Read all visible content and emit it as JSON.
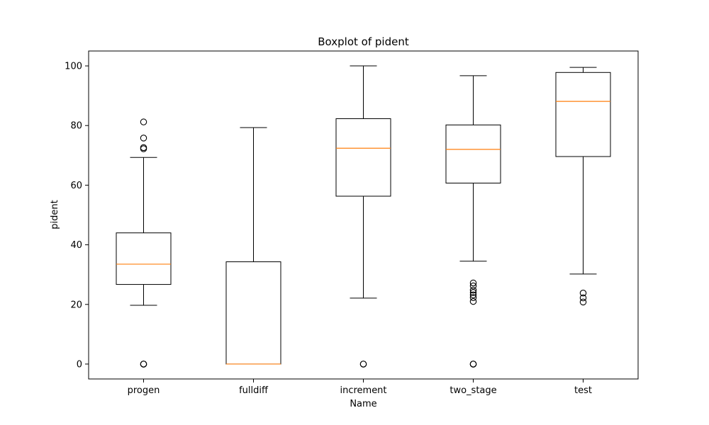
{
  "chart_data": {
    "type": "boxplot",
    "title": "Boxplot of pident",
    "xlabel": "Name",
    "ylabel": "pident",
    "ylim": [
      -5,
      105
    ],
    "yticks": [
      0,
      20,
      40,
      60,
      80,
      100
    ],
    "grid": false,
    "colors": {
      "box": "#000000",
      "median": "#ff7f0e",
      "background": "#ffffff"
    },
    "categories": [
      "progen",
      "fulldiff",
      "increment",
      "two_stage",
      "test"
    ],
    "boxes": [
      {
        "name": "progen",
        "whisker_low": 19.7,
        "q1": 26.7,
        "median": 33.5,
        "q3": 44.0,
        "whisker_high": 69.3,
        "outliers": [
          0,
          0,
          0,
          72.2,
          72.6,
          75.8,
          81.2
        ]
      },
      {
        "name": "fulldiff",
        "whisker_low": 0,
        "q1": 0,
        "median": 0,
        "q3": 34.3,
        "whisker_high": 79.3,
        "outliers": []
      },
      {
        "name": "increment",
        "whisker_low": 22.1,
        "q1": 56.3,
        "median": 72.4,
        "q3": 82.3,
        "whisker_high": 100,
        "outliers": [
          0,
          0
        ]
      },
      {
        "name": "two_stage",
        "whisker_low": 34.5,
        "q1": 60.7,
        "median": 72.0,
        "q3": 80.2,
        "whisker_high": 96.7,
        "outliers": [
          0,
          0,
          0,
          21.0,
          22.3,
          23.2,
          24.0,
          24.8,
          26.2,
          27.2
        ]
      },
      {
        "name": "test",
        "whisker_low": 30.2,
        "q1": 69.6,
        "median": 88.1,
        "q3": 97.8,
        "whisker_high": 99.5,
        "outliers": [
          20.8,
          22.2,
          23.8
        ]
      }
    ]
  }
}
